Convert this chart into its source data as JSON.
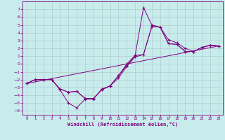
{
  "xlabel": "Windchill (Refroidissement éolien,°C)",
  "bg_color": "#c8ecec",
  "grid_color": "#b0cccc",
  "line_color": "#800080",
  "xlim": [
    -0.5,
    23.5
  ],
  "ylim": [
    -6.5,
    8.0
  ],
  "xticks": [
    0,
    1,
    2,
    3,
    4,
    5,
    6,
    7,
    8,
    9,
    10,
    11,
    12,
    13,
    14,
    15,
    16,
    17,
    18,
    19,
    20,
    21,
    22,
    23
  ],
  "yticks": [
    -6,
    -5,
    -4,
    -3,
    -2,
    -1,
    0,
    1,
    2,
    3,
    4,
    5,
    6,
    7
  ],
  "series1_x": [
    0,
    1,
    2,
    3,
    4,
    5,
    6,
    7,
    8,
    9,
    10,
    11,
    12,
    13,
    14,
    15,
    16,
    17,
    18,
    19,
    20,
    21,
    22,
    23
  ],
  "series1_y": [
    -2.5,
    -2.0,
    -2.0,
    -2.0,
    -3.3,
    -5.0,
    -5.6,
    -4.5,
    -4.5,
    -3.2,
    -2.8,
    -1.5,
    -0.2,
    1.1,
    7.2,
    5.0,
    4.7,
    3.1,
    2.7,
    2.0,
    1.6,
    2.1,
    2.4,
    2.3
  ],
  "series2_x": [
    0,
    1,
    2,
    3,
    4,
    5,
    6,
    7,
    8,
    9,
    10,
    11,
    12,
    13,
    14,
    15,
    16,
    17,
    18,
    19,
    20,
    21,
    22,
    23
  ],
  "series2_y": [
    -2.5,
    -2.0,
    -2.0,
    -2.0,
    -3.2,
    -3.6,
    -3.5,
    -4.4,
    -4.4,
    -3.3,
    -2.8,
    -1.8,
    -0.3,
    0.9,
    1.2,
    4.8,
    4.7,
    2.6,
    2.5,
    1.6,
    1.6,
    2.1,
    2.4,
    2.3
  ],
  "series3_x": [
    0,
    1,
    2,
    3,
    4,
    5,
    6,
    7,
    8,
    9,
    10,
    11,
    12,
    13,
    14,
    15,
    16,
    17,
    18,
    19,
    20,
    21,
    22,
    23
  ],
  "series3_y": [
    -2.5,
    -2.0,
    -2.0,
    -2.0,
    -3.2,
    -3.6,
    -3.5,
    -4.4,
    -4.4,
    -3.3,
    -2.8,
    -1.5,
    -0.0,
    1.1,
    1.2,
    4.8,
    4.7,
    2.6,
    2.5,
    1.6,
    1.6,
    2.1,
    2.4,
    2.3
  ],
  "series4_x": [
    0,
    23
  ],
  "series4_y": [
    -2.5,
    2.3
  ]
}
